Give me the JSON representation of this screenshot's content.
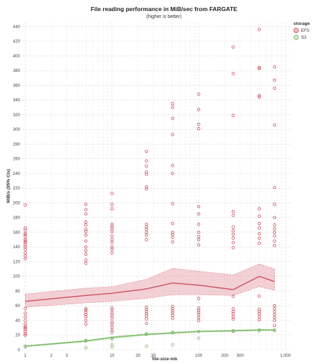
{
  "chart_data": {
    "type": "scatter",
    "title": "File reading performance in MiB/sec from FARGATE",
    "subtitle": "(higher is better)",
    "xlabel": "file-size-mb",
    "ylabel": "MiB/s (95% CIs)",
    "xscale": "log",
    "xlim": [
      0.92,
      1150
    ],
    "ylim": [
      0,
      446
    ],
    "x_ticks": [
      {
        "value": 1,
        "label": "1"
      },
      {
        "value": 2,
        "label": "2"
      },
      {
        "value": 3,
        "label": "3"
      },
      {
        "value": 10,
        "label": "10"
      },
      {
        "value": 20,
        "label": "20"
      },
      {
        "value": 30,
        "label": "30"
      },
      {
        "value": 100,
        "label": "100"
      },
      {
        "value": 200,
        "label": "200"
      },
      {
        "value": 300,
        "label": "300"
      },
      {
        "value": 1000,
        "label": "1,000"
      }
    ],
    "y_ticks": [
      0,
      20,
      40,
      60,
      80,
      100,
      120,
      140,
      160,
      180,
      200,
      220,
      240,
      260,
      280,
      300,
      320,
      340,
      360,
      380,
      400,
      420,
      440
    ],
    "grid": true,
    "legend": {
      "title": "storage",
      "placement": "top-right",
      "items": [
        {
          "label": "EFS",
          "color": "#c9505e"
        },
        {
          "label": "S3",
          "color": "#7fba6a"
        }
      ]
    },
    "series": [
      {
        "name": "EFS",
        "color": "#c9505e",
        "band_color": "#e8a9b0",
        "mean": [
          [
            1,
            66
          ],
          [
            5,
            74
          ],
          [
            10,
            77
          ],
          [
            25,
            83
          ],
          [
            50,
            91
          ],
          [
            100,
            88
          ],
          [
            250,
            82
          ],
          [
            500,
            100
          ],
          [
            750,
            93
          ]
        ],
        "ci_low": [
          [
            1,
            58
          ],
          [
            5,
            64
          ],
          [
            10,
            66
          ],
          [
            25,
            70
          ],
          [
            50,
            75
          ],
          [
            100,
            75
          ],
          [
            250,
            74
          ],
          [
            500,
            86
          ],
          [
            750,
            81
          ]
        ],
        "ci_high": [
          [
            1,
            76
          ],
          [
            5,
            84
          ],
          [
            10,
            86
          ],
          [
            25,
            96
          ],
          [
            50,
            111
          ],
          [
            100,
            107
          ],
          [
            250,
            102
          ],
          [
            500,
            117
          ],
          [
            750,
            110
          ]
        ],
        "points": [
          [
            1,
            197
          ],
          [
            1,
            166
          ],
          [
            1,
            163
          ],
          [
            1,
            158
          ],
          [
            1,
            157
          ],
          [
            1,
            154
          ],
          [
            1,
            150
          ],
          [
            1,
            148
          ],
          [
            1,
            146
          ],
          [
            1,
            143
          ],
          [
            1,
            140
          ],
          [
            1,
            137
          ],
          [
            1,
            132
          ],
          [
            1,
            128
          ],
          [
            1,
            124
          ],
          [
            1,
            56
          ],
          [
            1,
            50
          ],
          [
            1,
            45
          ],
          [
            1,
            40
          ],
          [
            1,
            35
          ],
          [
            1,
            32
          ],
          [
            1,
            30
          ],
          [
            1,
            28
          ],
          [
            1,
            25
          ],
          [
            1,
            22
          ],
          [
            1,
            20
          ],
          [
            5,
            198
          ],
          [
            5,
            191
          ],
          [
            5,
            185
          ],
          [
            5,
            174
          ],
          [
            5,
            170
          ],
          [
            5,
            164
          ],
          [
            5,
            161
          ],
          [
            5,
            156
          ],
          [
            5,
            148
          ],
          [
            5,
            140
          ],
          [
            5,
            135
          ],
          [
            5,
            130
          ],
          [
            5,
            122
          ],
          [
            5,
            118
          ],
          [
            5,
            56
          ],
          [
            5,
            54
          ],
          [
            5,
            51
          ],
          [
            5,
            48
          ],
          [
            5,
            45
          ],
          [
            5,
            40
          ],
          [
            5,
            35
          ],
          [
            10,
            213
          ],
          [
            10,
            198
          ],
          [
            10,
            192
          ],
          [
            10,
            171
          ],
          [
            10,
            168
          ],
          [
            10,
            165
          ],
          [
            10,
            161
          ],
          [
            10,
            155
          ],
          [
            10,
            150
          ],
          [
            10,
            146
          ],
          [
            10,
            140
          ],
          [
            10,
            137
          ],
          [
            10,
            132
          ],
          [
            10,
            57
          ],
          [
            10,
            54
          ],
          [
            10,
            50
          ],
          [
            10,
            47
          ],
          [
            10,
            43
          ],
          [
            10,
            38
          ],
          [
            10,
            35
          ],
          [
            10,
            31
          ],
          [
            10,
            27
          ],
          [
            10,
            24
          ],
          [
            25,
            270
          ],
          [
            25,
            257
          ],
          [
            25,
            250
          ],
          [
            25,
            242
          ],
          [
            25,
            239
          ],
          [
            25,
            222
          ],
          [
            25,
            219
          ],
          [
            25,
            171
          ],
          [
            25,
            167
          ],
          [
            25,
            164
          ],
          [
            25,
            160
          ],
          [
            25,
            156
          ],
          [
            25,
            150
          ],
          [
            25,
            58
          ],
          [
            25,
            55
          ],
          [
            25,
            52
          ],
          [
            25,
            49
          ],
          [
            25,
            46
          ],
          [
            25,
            42
          ],
          [
            25,
            36
          ],
          [
            50,
            335
          ],
          [
            50,
            330
          ],
          [
            50,
            315
          ],
          [
            50,
            293
          ],
          [
            50,
            251
          ],
          [
            50,
            240
          ],
          [
            50,
            199
          ],
          [
            50,
            172
          ],
          [
            50,
            160
          ],
          [
            50,
            157
          ],
          [
            50,
            153
          ],
          [
            50,
            147
          ],
          [
            50,
            59
          ],
          [
            50,
            56
          ],
          [
            50,
            53
          ],
          [
            50,
            50
          ],
          [
            50,
            47
          ],
          [
            50,
            43
          ],
          [
            100,
            348
          ],
          [
            100,
            327
          ],
          [
            100,
            307
          ],
          [
            100,
            301
          ],
          [
            100,
            195
          ],
          [
            100,
            185
          ],
          [
            100,
            171
          ],
          [
            100,
            160
          ],
          [
            100,
            154
          ],
          [
            100,
            150
          ],
          [
            100,
            143
          ],
          [
            100,
            70
          ],
          [
            100,
            57
          ],
          [
            100,
            54
          ],
          [
            100,
            51
          ],
          [
            100,
            48
          ],
          [
            100,
            44
          ],
          [
            100,
            40
          ],
          [
            250,
            412
          ],
          [
            250,
            376
          ],
          [
            250,
            319
          ],
          [
            250,
            188
          ],
          [
            250,
            183
          ],
          [
            250,
            167
          ],
          [
            250,
            162
          ],
          [
            250,
            157
          ],
          [
            250,
            152
          ],
          [
            250,
            146
          ],
          [
            250,
            139
          ],
          [
            250,
            73
          ],
          [
            250,
            56
          ],
          [
            250,
            52
          ],
          [
            250,
            49
          ],
          [
            250,
            45
          ],
          [
            250,
            42
          ],
          [
            500,
            436
          ],
          [
            500,
            384
          ],
          [
            500,
            383
          ],
          [
            500,
            346
          ],
          [
            500,
            344
          ],
          [
            500,
            192
          ],
          [
            500,
            182
          ],
          [
            500,
            172
          ],
          [
            500,
            166
          ],
          [
            500,
            158
          ],
          [
            500,
            152
          ],
          [
            500,
            145
          ],
          [
            500,
            73
          ],
          [
            500,
            55
          ],
          [
            500,
            52
          ],
          [
            500,
            49
          ],
          [
            500,
            45
          ],
          [
            500,
            41
          ],
          [
            750,
            385
          ],
          [
            750,
            367
          ],
          [
            750,
            356
          ],
          [
            750,
            306
          ],
          [
            750,
            221
          ],
          [
            750,
            198
          ],
          [
            750,
            180
          ],
          [
            750,
            170
          ],
          [
            750,
            165
          ],
          [
            750,
            160
          ],
          [
            750,
            155
          ],
          [
            750,
            148
          ],
          [
            750,
            142
          ],
          [
            750,
            60
          ],
          [
            750,
            56
          ],
          [
            750,
            52
          ],
          [
            750,
            48
          ],
          [
            750,
            44
          ],
          [
            750,
            40
          ],
          [
            750,
            33
          ]
        ]
      },
      {
        "name": "S3",
        "color": "#7fba6a",
        "band_color": "#bfe0b3",
        "mean": [
          [
            1,
            5
          ],
          [
            5,
            12
          ],
          [
            10,
            17
          ],
          [
            25,
            21
          ],
          [
            50,
            23
          ],
          [
            100,
            25
          ],
          [
            250,
            26
          ],
          [
            500,
            27
          ],
          [
            750,
            27
          ]
        ],
        "ci_low": [
          [
            1,
            4
          ],
          [
            5,
            11
          ],
          [
            10,
            15
          ],
          [
            25,
            20
          ],
          [
            50,
            22
          ],
          [
            100,
            24
          ],
          [
            250,
            25
          ],
          [
            500,
            26
          ],
          [
            750,
            26
          ]
        ],
        "ci_high": [
          [
            1,
            6
          ],
          [
            5,
            13
          ],
          [
            10,
            18
          ],
          [
            25,
            22
          ],
          [
            50,
            24
          ],
          [
            100,
            26
          ],
          [
            250,
            27
          ],
          [
            500,
            28
          ],
          [
            750,
            28
          ]
        ],
        "points": [
          [
            1,
            5
          ],
          [
            1,
            4
          ],
          [
            5,
            13
          ],
          [
            5,
            12
          ],
          [
            5,
            3
          ],
          [
            10,
            16
          ],
          [
            10,
            15
          ],
          [
            10,
            7
          ],
          [
            10,
            4
          ],
          [
            25,
            22
          ],
          [
            25,
            21
          ],
          [
            25,
            5
          ],
          [
            50,
            24
          ],
          [
            50,
            23
          ],
          [
            50,
            7
          ],
          [
            100,
            25
          ],
          [
            100,
            16
          ],
          [
            250,
            26
          ],
          [
            250,
            25
          ],
          [
            500,
            27
          ],
          [
            500,
            26
          ],
          [
            750,
            27
          ],
          [
            750,
            26
          ]
        ]
      }
    ]
  }
}
